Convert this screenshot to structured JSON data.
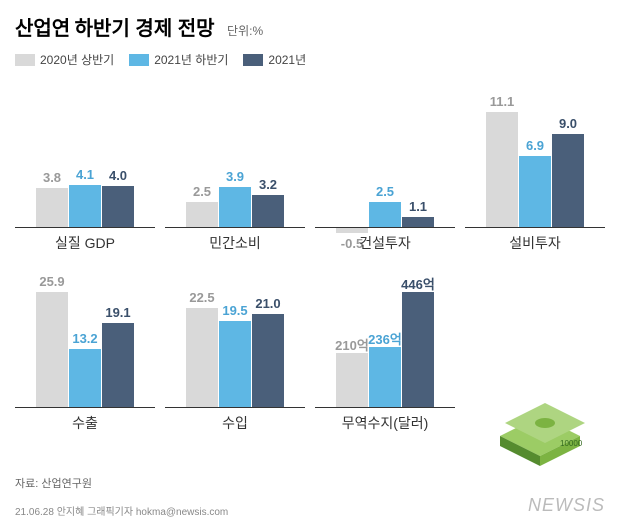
{
  "title_prefix": "산업연",
  "title_main": "하반기 경제 전망",
  "unit": "단위:%",
  "legend": [
    {
      "label": "2020년 상반기",
      "color": "#d9d9d9"
    },
    {
      "label": "2021년 하반기",
      "color": "#5eb7e4"
    },
    {
      "label": "2021년",
      "color": "#4a5f7a"
    }
  ],
  "value_colors": [
    "#999999",
    "#4aa3d4",
    "#3a4f6a"
  ],
  "charts": [
    {
      "label": "실질 GDP",
      "values": [
        3.8,
        4.1,
        4.0
      ],
      "display": [
        "3.8",
        "4.1",
        "4.0"
      ],
      "max": 12
    },
    {
      "label": "민간소비",
      "values": [
        2.5,
        3.9,
        3.2
      ],
      "display": [
        "2.5",
        "3.9",
        "3.2"
      ],
      "max": 12
    },
    {
      "label": "건설투자",
      "values": [
        -0.5,
        2.5,
        1.1
      ],
      "display": [
        "-0.5",
        "2.5",
        "1.1"
      ],
      "max": 12
    },
    {
      "label": "설비투자",
      "values": [
        11.1,
        6.9,
        9.0
      ],
      "display": [
        "11.1",
        "6.9",
        "9.0"
      ],
      "max": 12
    },
    {
      "label": "수출",
      "values": [
        25.9,
        13.2,
        19.1
      ],
      "display": [
        "25.9",
        "13.2",
        "19.1"
      ],
      "max": 28
    },
    {
      "label": "수입",
      "values": [
        22.5,
        19.5,
        21.0
      ],
      "display": [
        "22.5",
        "19.5",
        "21.0"
      ],
      "max": 28
    },
    {
      "label": "무역수지(달러)",
      "values": [
        210,
        236,
        446
      ],
      "display": [
        "210억",
        "236억",
        "446억"
      ],
      "max": 480
    }
  ],
  "source": "자료: 산업연구원",
  "footer": "21.06.28 안지혜 그래픽기자 hokma@newsis.com",
  "watermark": "NEWSIS",
  "money_colors": {
    "base": "#7cb342",
    "top": "#9ccc65",
    "edge": "#558b2f"
  }
}
